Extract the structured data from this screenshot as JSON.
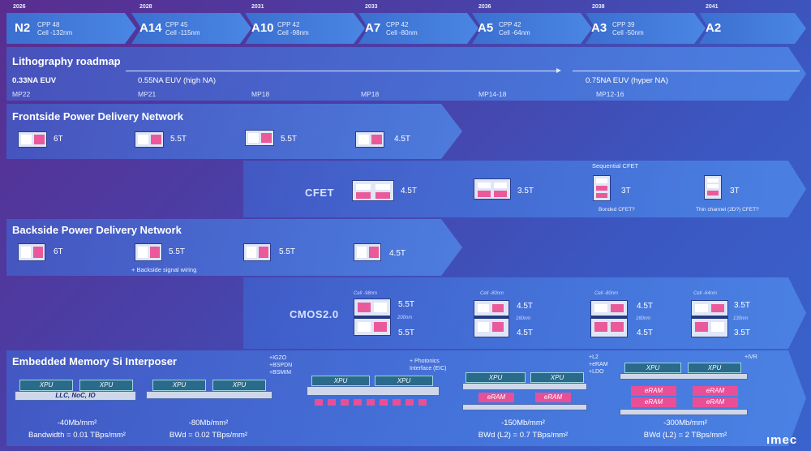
{
  "header": {
    "nodes": [
      {
        "year": "2026",
        "name": "N2",
        "cpp": "CPP 48",
        "cell": "Cell -132nm"
      },
      {
        "year": "2028",
        "name": "A14",
        "cpp": "CPP 45",
        "cell": "Cell -115nm"
      },
      {
        "year": "2031",
        "name": "A10",
        "cpp": "CPP 42",
        "cell": "Cell -98nm"
      },
      {
        "year": "2033",
        "name": "A7",
        "cpp": "CPP 42",
        "cell": "Cell -80nm"
      },
      {
        "year": "2036",
        "name": "A5",
        "cpp": "CPP 42",
        "cell": "Cell -64nm"
      },
      {
        "year": "2038",
        "name": "A3",
        "cpp": "CPP 39",
        "cell": "Cell -50nm"
      },
      {
        "year": "2041",
        "name": "A2",
        "cpp": "",
        "cell": ""
      }
    ]
  },
  "lithography": {
    "title": "Lithography roadmap",
    "euv1": "0.33NA EUV",
    "euv2": "0.55NA EUV (high NA)",
    "euv3": "0.75NA EUV (hyper NA)",
    "mp": [
      "MP22",
      "MP21",
      "MP18",
      "MP18",
      "MP14-18",
      "MP12-16"
    ]
  },
  "frontside": {
    "title": "Frontside Power Delivery Network",
    "tracks": [
      "6T",
      "5.5T",
      "5.5T",
      "4.5T"
    ]
  },
  "cfet": {
    "tag": "CFET",
    "tracks": [
      "4.5T",
      "3.5T",
      "3T",
      "3T"
    ],
    "sequential": "Sequential CFET",
    "bonded": "Bonded CFET?",
    "thin": "Thin channel (2D?) CFET?"
  },
  "backside": {
    "title": "Backside Power Delivery Network",
    "tracks": [
      "6T",
      "5.5T",
      "5.5T",
      "4.5T"
    ],
    "note": "+ Backside signal wiring"
  },
  "cmos": {
    "tag": "CMOS2.0",
    "groups": [
      {
        "cell": "Cell -98nm",
        "top": "5.5T",
        "pitch": "200nm",
        "bottom": "5.5T"
      },
      {
        "cell": "Cell -80nm",
        "top": "4.5T",
        "pitch": "160nm",
        "bottom": "4.5T"
      },
      {
        "cell": "Cell -80nm",
        "top": "4.5T",
        "pitch": "160nm",
        "bottom": "4.5T"
      },
      {
        "cell": "Cell -64nm",
        "top": "3.5T",
        "pitch": "130nm",
        "bottom": "3.5T"
      }
    ]
  },
  "memory": {
    "title": "Embedded Memory Si Interposer",
    "xpu": "XPU",
    "llc": "LLC, NoC, IO",
    "eram": "eRAM",
    "add1": [
      "+IGZO",
      "+BSPDN",
      "+BSMIM"
    ],
    "add2": [
      "+ Photonics",
      "Interface (EIC)"
    ],
    "add3": [
      "+L2",
      "+eRAM",
      "+LDO"
    ],
    "add4": [
      "+IVR"
    ],
    "stats": [
      {
        "density": "-40Mb/mm²",
        "bw": "Bandwidth = 0.01 TBps/mm²"
      },
      {
        "density": "-80Mb/mm²",
        "bw": "BWd = 0.02 TBps/mm²"
      },
      {
        "density": "-150Mb/mm²",
        "bw": "BWd (L2) = 0.7 TBps/mm²"
      },
      {
        "density": "-300Mb/mm²",
        "bw": "BWd (L2) = 2 TBps/mm²"
      }
    ]
  },
  "logo": "ımec",
  "colors": {
    "accent_pink": "#ea5a9a",
    "dark_blue": "#243a80",
    "band_blue": "#4a86e4"
  }
}
